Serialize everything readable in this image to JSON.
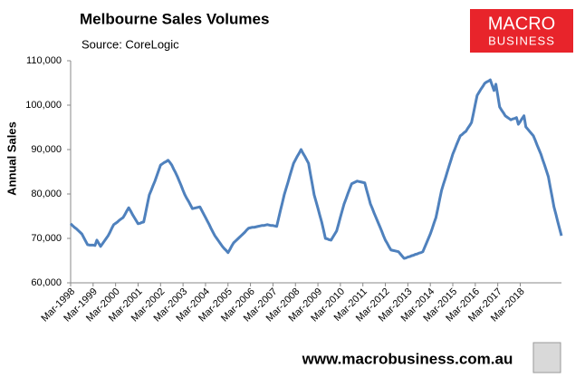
{
  "chart_data": {
    "type": "line",
    "title": "Melbourne Sales Volumes",
    "subtitle": "Source: CoreLogic",
    "y_label": "Annual Sales",
    "color": "#4f81bd",
    "categories": [
      "Mar-1998",
      null,
      null,
      null,
      null,
      null,
      null,
      null,
      null,
      null,
      null,
      null,
      "Mar-1999",
      null,
      null,
      null,
      null,
      null,
      null,
      null,
      null,
      null,
      null,
      null,
      "Mar-2000",
      null,
      null,
      null,
      null,
      null,
      null,
      null,
      null,
      null,
      null,
      null,
      "Mar-2001",
      null,
      null,
      null,
      null,
      null,
      null,
      null,
      null,
      null,
      null,
      null,
      "Mar-2002",
      null,
      null,
      null,
      null,
      null,
      null,
      null,
      null,
      null,
      null,
      null,
      "Mar-2003",
      null,
      null,
      null,
      null,
      null,
      null,
      null,
      null,
      null,
      null,
      null,
      "Mar-2004",
      null,
      null,
      null,
      null,
      null,
      null,
      null,
      null,
      null,
      null,
      null,
      "Mar-2005",
      null,
      null,
      null,
      null,
      null,
      null,
      null,
      null,
      null,
      null,
      null,
      "Mar-2006",
      null,
      null,
      null,
      null,
      null,
      null,
      null,
      null,
      null,
      null,
      null,
      "Mar-2007",
      null,
      null,
      null,
      null,
      null,
      null,
      null,
      null,
      null,
      null,
      null,
      "Mar-2008",
      null,
      null,
      null,
      null,
      null,
      null,
      null,
      null,
      null,
      null,
      null,
      "Mar-2009",
      null,
      null,
      null,
      null,
      null,
      null,
      null,
      null,
      null,
      null,
      null,
      "Mar-2010",
      null,
      null,
      null,
      null,
      null,
      null,
      null,
      null,
      null,
      null,
      null,
      "Mar-2011",
      null,
      null,
      null,
      null,
      null,
      null,
      null,
      null,
      null,
      null,
      null,
      "Mar-2012",
      null,
      null,
      null,
      null,
      null,
      null,
      null,
      null,
      null,
      null,
      null,
      "Mar-2013",
      null,
      null,
      null,
      null,
      null,
      null,
      null,
      null,
      null,
      null,
      null,
      "Mar-2014",
      null,
      null,
      null,
      null,
      null,
      null,
      null,
      null,
      null,
      null,
      null,
      "Mar-2015",
      null,
      null,
      null,
      null,
      null,
      null,
      null,
      null,
      null,
      null,
      null,
      "Mar-2016",
      null,
      null,
      null,
      null,
      null,
      null,
      null,
      null,
      null,
      null,
      null,
      "Mar-2017",
      null,
      null,
      null,
      null,
      null,
      null,
      null,
      null,
      null,
      null,
      null,
      "Mar-2018",
      null,
      null,
      null,
      null,
      null,
      null,
      null,
      null,
      null,
      null,
      null,
      null,
      null,
      null,
      null,
      null,
      null,
      null,
      null,
      null,
      null,
      null
    ],
    "values": [
      73300,
      72900,
      72500,
      72200,
      71800,
      71400,
      71000,
      70200,
      69400,
      68600,
      68500,
      68500,
      68500,
      68400,
      69600,
      68900,
      68200,
      68800,
      69400,
      70000,
      70600,
      71400,
      72300,
      73100,
      73400,
      73700,
      74100,
      74400,
      74700,
      75400,
      76200,
      76900,
      76200,
      75400,
      74700,
      74000,
      73300,
      73400,
      73600,
      73700,
      75700,
      77800,
      79800,
      80800,
      81900,
      82900,
      84100,
      85300,
      86500,
      86800,
      87100,
      87300,
      87600,
      87100,
      86500,
      85600,
      84800,
      83900,
      82900,
      81900,
      80800,
      79800,
      79000,
      78300,
      77500,
      76700,
      76800,
      76900,
      77000,
      77100,
      76300,
      75500,
      74700,
      73900,
      73100,
      72200,
      71400,
      70600,
      70000,
      69400,
      68800,
      68200,
      67700,
      67300,
      66800,
      67500,
      68300,
      69000,
      69400,
      69800,
      70200,
      70600,
      71000,
      71400,
      71900,
      72300,
      72400,
      72500,
      72500,
      72600,
      72700,
      72800,
      72900,
      72900,
      73000,
      73100,
      73000,
      72900,
      72900,
      72800,
      72700,
      74500,
      76300,
      78000,
      79800,
      81200,
      82600,
      84100,
      85500,
      86900,
      87700,
      88500,
      89200,
      90000,
      89200,
      88500,
      87700,
      86900,
      84500,
      82200,
      79800,
      78300,
      76800,
      75200,
      73700,
      71900,
      70000,
      69900,
      69700,
      69600,
      70300,
      71000,
      71700,
      73200,
      74800,
      76300,
      77800,
      78900,
      80100,
      81200,
      82300,
      82500,
      82700,
      82900,
      82800,
      82700,
      82600,
      82500,
      80900,
      79400,
      77800,
      76800,
      75700,
      74700,
      73700,
      72700,
      71700,
      70600,
      69600,
      68900,
      68100,
      67400,
      67300,
      67200,
      67100,
      67000,
      66500,
      66000,
      65500,
      65600,
      65800,
      65900,
      66100,
      66200,
      66400,
      66500,
      66700,
      66800,
      67000,
      68000,
      69000,
      70000,
      71000,
      72200,
      73500,
      74700,
      76700,
      78800,
      80800,
      82200,
      83500,
      84900,
      86300,
      87600,
      89000,
      90000,
      91100,
      92100,
      93100,
      93400,
      93800,
      94100,
      94800,
      95400,
      96100,
      98100,
      100200,
      102200,
      102900,
      103600,
      104200,
      104900,
      105200,
      105400,
      105700,
      104500,
      103300,
      104700,
      102200,
      99600,
      98900,
      98300,
      97600,
      97300,
      97000,
      96700,
      96900,
      97000,
      97200,
      95700,
      96300,
      97000,
      97600,
      95100,
      94600,
      94100,
      93600,
      93100,
      92100,
      91000,
      90000,
      89000,
      87700,
      86500,
      85200,
      83900,
      81600,
      79400,
      77100,
      75500,
      73800,
      72200,
      70600
    ],
    "ylim": [
      60000,
      110000
    ],
    "yticks": [
      {
        "value": 60000,
        "label": "60,000"
      },
      {
        "value": 70000,
        "label": "70,000"
      },
      {
        "value": 80000,
        "label": "80,000"
      },
      {
        "value": 90000,
        "label": "90,000"
      },
      {
        "value": 100000,
        "label": "100,000"
      },
      {
        "value": 110000,
        "label": "110,000"
      }
    ],
    "grid": false
  },
  "logo": {
    "line1": "MACRO",
    "line2": "BUSINESS"
  },
  "footer": "www.macrobusiness.com.au"
}
